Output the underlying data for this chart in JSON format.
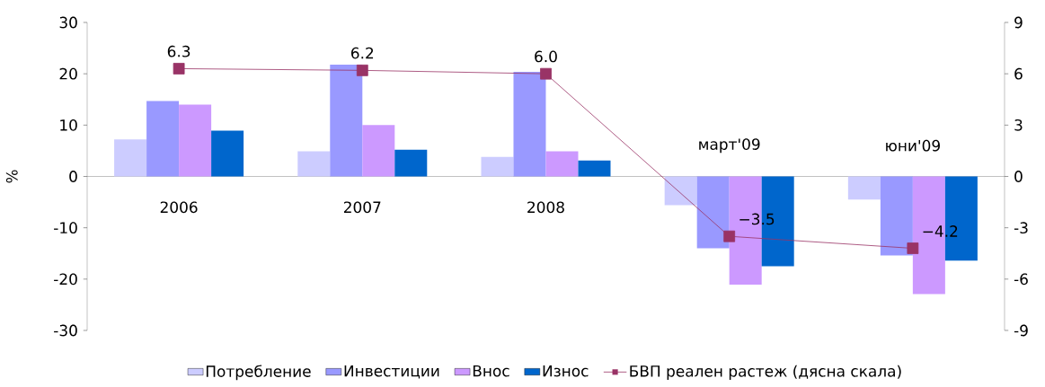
{
  "chart_data": {
    "type": "bar",
    "ylabel": "%",
    "categories": [
      "2006",
      "2007",
      "2008",
      "март'09",
      "юни'09"
    ],
    "series": [
      {
        "name": "Потребление",
        "color": "#ccccff",
        "values": [
          7.2,
          4.9,
          3.8,
          -5.6,
          -4.5
        ]
      },
      {
        "name": "Инвестиции",
        "color": "#9999ff",
        "values": [
          14.7,
          21.8,
          20.4,
          -14.0,
          -15.4
        ]
      },
      {
        "name": "Внос",
        "color": "#cc99ff",
        "values": [
          14.0,
          10.0,
          4.9,
          -21.1,
          -22.9
        ]
      },
      {
        "name": "Износ",
        "color": "#0066cc",
        "values": [
          8.9,
          5.2,
          3.1,
          -17.5,
          -16.4
        ]
      },
      {
        "name": "БВП реален растеж (дясна скала)",
        "type": "line",
        "axis": "y2",
        "color": "#993366",
        "marker": "square",
        "values": [
          6.3,
          6.2,
          6.0,
          -3.5,
          -4.2
        ],
        "value_labels": [
          "6.3",
          "6.2",
          "6.0",
          "−3.5",
          "−4.2"
        ]
      }
    ],
    "ylim": [
      -30,
      30
    ],
    "yticks": [
      -30,
      -20,
      -10,
      0,
      10,
      20,
      30
    ],
    "y2lim": [
      -9,
      9
    ],
    "y2ticks": [
      -9,
      -6,
      -3,
      0,
      3,
      6,
      9
    ],
    "grid": false,
    "legend": "bottom"
  }
}
